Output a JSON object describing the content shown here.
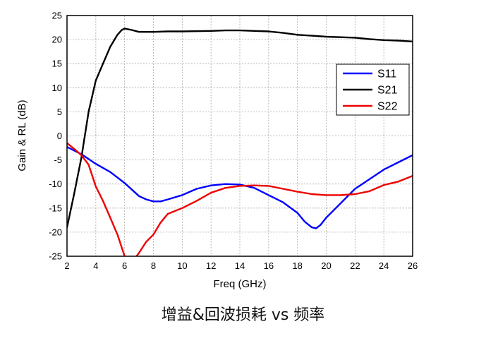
{
  "caption": "增益&回波损耗 vs 频率",
  "chart_data": {
    "type": "line",
    "title": "",
    "xlabel": "Freq (GHz)",
    "ylabel": "Gain & RL (dB)",
    "xlim": [
      2,
      26
    ],
    "ylim": [
      -25,
      25
    ],
    "xticks": [
      2,
      4,
      6,
      8,
      10,
      12,
      14,
      16,
      18,
      20,
      22,
      24,
      26
    ],
    "yticks": [
      -25,
      -20,
      -15,
      -10,
      -5,
      0,
      5,
      10,
      15,
      20,
      25
    ],
    "grid": true,
    "legend_position": "right",
    "series": [
      {
        "name": "S11",
        "color": "#0000ff",
        "x": [
          2,
          3,
          4,
          5,
          6,
          7,
          7.5,
          8,
          8.5,
          9,
          10,
          11,
          12,
          13,
          14,
          15,
          16,
          17,
          18,
          18.5,
          19,
          19.3,
          19.6,
          20,
          21,
          22,
          23,
          24,
          25,
          26
        ],
        "y": [
          -2.3,
          -3.8,
          -5.8,
          -7.5,
          -9.8,
          -12.5,
          -13.2,
          -13.6,
          -13.6,
          -13.2,
          -12.3,
          -11.0,
          -10.3,
          -10.0,
          -10.1,
          -10.8,
          -12.3,
          -13.8,
          -16.0,
          -17.8,
          -19.0,
          -19.2,
          -18.5,
          -17.0,
          -14.0,
          -11.0,
          -9.0,
          -7.0,
          -5.5,
          -4.0
        ]
      },
      {
        "name": "S21",
        "color": "#000000",
        "x": [
          2,
          2.5,
          3,
          3.5,
          4,
          4.5,
          5,
          5.5,
          5.8,
          6,
          6.5,
          7,
          8,
          9,
          10,
          12,
          13,
          14,
          15,
          16,
          17,
          18,
          19,
          20,
          21,
          22,
          23,
          24,
          25,
          26
        ],
        "y": [
          -19.0,
          -12.0,
          -4.5,
          5.0,
          11.5,
          15.0,
          18.5,
          21.0,
          22.0,
          22.3,
          22.0,
          21.6,
          21.6,
          21.7,
          21.7,
          21.8,
          21.9,
          21.9,
          21.8,
          21.7,
          21.4,
          21.0,
          20.8,
          20.6,
          20.5,
          20.4,
          20.1,
          19.9,
          19.8,
          19.6
        ]
      },
      {
        "name": "S22",
        "color": "#ee0000",
        "x": [
          2,
          2.5,
          3,
          3.5,
          4,
          4.5,
          5,
          5.5,
          6,
          6.2,
          6.4,
          6.7,
          7,
          7.5,
          8,
          8.5,
          9,
          10,
          11,
          12,
          13,
          14,
          15,
          16,
          17,
          18,
          19,
          20,
          21,
          22,
          23,
          24,
          25,
          26
        ],
        "y": [
          -1.5,
          -2.7,
          -4.0,
          -6.0,
          -10.5,
          -13.5,
          -17.0,
          -20.5,
          -25.0,
          -26.5,
          -27.0,
          -25.5,
          -24.3,
          -22.0,
          -20.5,
          -18.0,
          -16.2,
          -15.0,
          -13.5,
          -11.8,
          -10.8,
          -10.4,
          -10.3,
          -10.4,
          -11.0,
          -11.6,
          -12.1,
          -12.3,
          -12.3,
          -12.1,
          -11.5,
          -10.2,
          -9.5,
          -8.3
        ]
      }
    ]
  }
}
